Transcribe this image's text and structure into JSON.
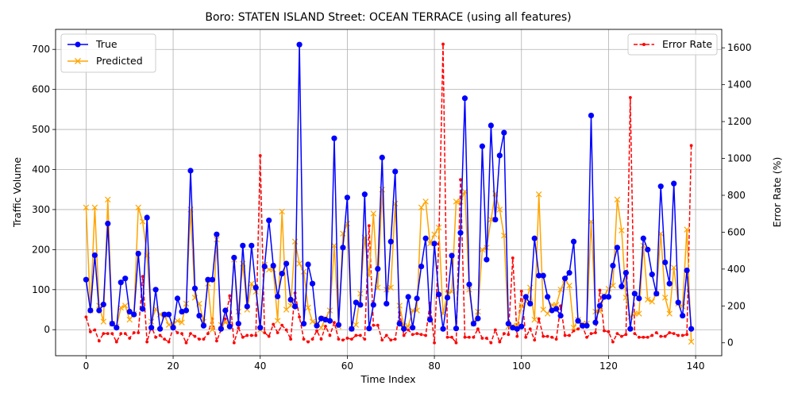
{
  "chart_data": {
    "type": "line",
    "title": "Boro: STATEN ISLAND Street: OCEAN TERRACE (using all features)",
    "xlabel": "Time Index",
    "ylabel_left": "Traffic Volume",
    "ylabel_right": "Error Rate (%)",
    "xlim": [
      -7,
      146
    ],
    "ylim_left": [
      -65,
      750
    ],
    "ylim_right": [
      -70,
      1700
    ],
    "x_ticks": [
      0,
      20,
      40,
      60,
      80,
      100,
      120,
      140
    ],
    "y_ticks_left": [
      0,
      100,
      200,
      300,
      400,
      500,
      600,
      700
    ],
    "y_ticks_right": [
      0,
      200,
      400,
      600,
      800,
      1000,
      1200,
      1400,
      1600
    ],
    "grid": true,
    "legend_left_position": "upper-left",
    "legend_right_position": "upper-right",
    "series": [
      {
        "name": "True",
        "axis": "left",
        "color": "#0000ff",
        "marker": "circle",
        "values": [
          125,
          48,
          186,
          48,
          63,
          265,
          15,
          5,
          118,
          128,
          45,
          38,
          190,
          52,
          280,
          5,
          100,
          2,
          38,
          38,
          5,
          78,
          45,
          48,
          397,
          103,
          35,
          10,
          125,
          125,
          238,
          2,
          48,
          8,
          180,
          15,
          210,
          58,
          210,
          105,
          5,
          158,
          273,
          160,
          83,
          140,
          165,
          75,
          58,
          712,
          15,
          163,
          115,
          10,
          28,
          25,
          22,
          478,
          12,
          205,
          330,
          2,
          68,
          62,
          338,
          3,
          62,
          152,
          430,
          65,
          220,
          395,
          15,
          2,
          82,
          5,
          78,
          158,
          228,
          25,
          215,
          88,
          2,
          80,
          185,
          3,
          242,
          578,
          113,
          15,
          28,
          458,
          175,
          510,
          275,
          435,
          492,
          15,
          5,
          2,
          8,
          82,
          65,
          228,
          135,
          135,
          82,
          48,
          52,
          35,
          128,
          142,
          220,
          22,
          10,
          10,
          535,
          18,
          60,
          82,
          82,
          160,
          205,
          108,
          142,
          2,
          90,
          78,
          228,
          200,
          138,
          90,
          358,
          168,
          115,
          365,
          68,
          35,
          148,
          2
        ]
      },
      {
        "name": "Predicted",
        "axis": "left",
        "color": "#ffa500",
        "marker": "x",
        "values": [
          305,
          48,
          305,
          60,
          20,
          325,
          15,
          8,
          55,
          60,
          25,
          40,
          305,
          270,
          185,
          20,
          52,
          38,
          35,
          12,
          15,
          22,
          18,
          65,
          300,
          80,
          65,
          20,
          115,
          0,
          225,
          12,
          18,
          15,
          175,
          45,
          165,
          50,
          115,
          95,
          0,
          162,
          150,
          150,
          22,
          295,
          50,
          60,
          220,
          165,
          145,
          55,
          20,
          15,
          5,
          28,
          48,
          210,
          8,
          240,
          265,
          2,
          12,
          90,
          230,
          135,
          290,
          105,
          350,
          100,
          105,
          315,
          60,
          10,
          8,
          48,
          48,
          305,
          320,
          215,
          238,
          255,
          40,
          90,
          95,
          320,
          320,
          345,
          100,
          15,
          45,
          200,
          205,
          275,
          340,
          300,
          235,
          8,
          10,
          10,
          60,
          70,
          105,
          25,
          338,
          50,
          40,
          62,
          62,
          100,
          125,
          110,
          5,
          25,
          15,
          15,
          270,
          45,
          45,
          85,
          102,
          110,
          325,
          248,
          80,
          32,
          40,
          40,
          210,
          75,
          70,
          90,
          240,
          80,
          40,
          155,
          65,
          58,
          250,
          -30
        ]
      },
      {
        "name": "Error Rate",
        "axis": "right",
        "color": "#ff0000",
        "marker": "point",
        "dashed": true,
        "values": [
          140,
          60,
          70,
          10,
          50,
          50,
          50,
          5,
          50,
          50,
          25,
          55,
          55,
          360,
          5,
          90,
          30,
          40,
          20,
          5,
          80,
          55,
          50,
          0,
          50,
          35,
          20,
          20,
          50,
          130,
          10,
          70,
          130,
          255,
          0,
          80,
          30,
          40,
          40,
          40,
          1015,
          55,
          35,
          100,
          55,
          95,
          70,
          20,
          270,
          140,
          20,
          5,
          20,
          65,
          20,
          90,
          40,
          110,
          20,
          15,
          25,
          20,
          40,
          40,
          20,
          635,
          95,
          95,
          15,
          40,
          15,
          20,
          165,
          40,
          70,
          45,
          50,
          45,
          40,
          215,
          0,
          535,
          1620,
          30,
          30,
          0,
          885,
          30,
          30,
          30,
          75,
          25,
          25,
          0,
          70,
          5,
          50,
          45,
          460,
          35,
          280,
          30,
          75,
          15,
          130,
          35,
          35,
          30,
          20,
          200,
          40,
          40,
          65,
          75,
          90,
          30,
          50,
          55,
          285,
          65,
          60,
          5,
          50,
          35,
          45,
          1330,
          50,
          30,
          30,
          30,
          40,
          55,
          35,
          35,
          55,
          50,
          40,
          40,
          45,
          1070
        ]
      }
    ]
  }
}
